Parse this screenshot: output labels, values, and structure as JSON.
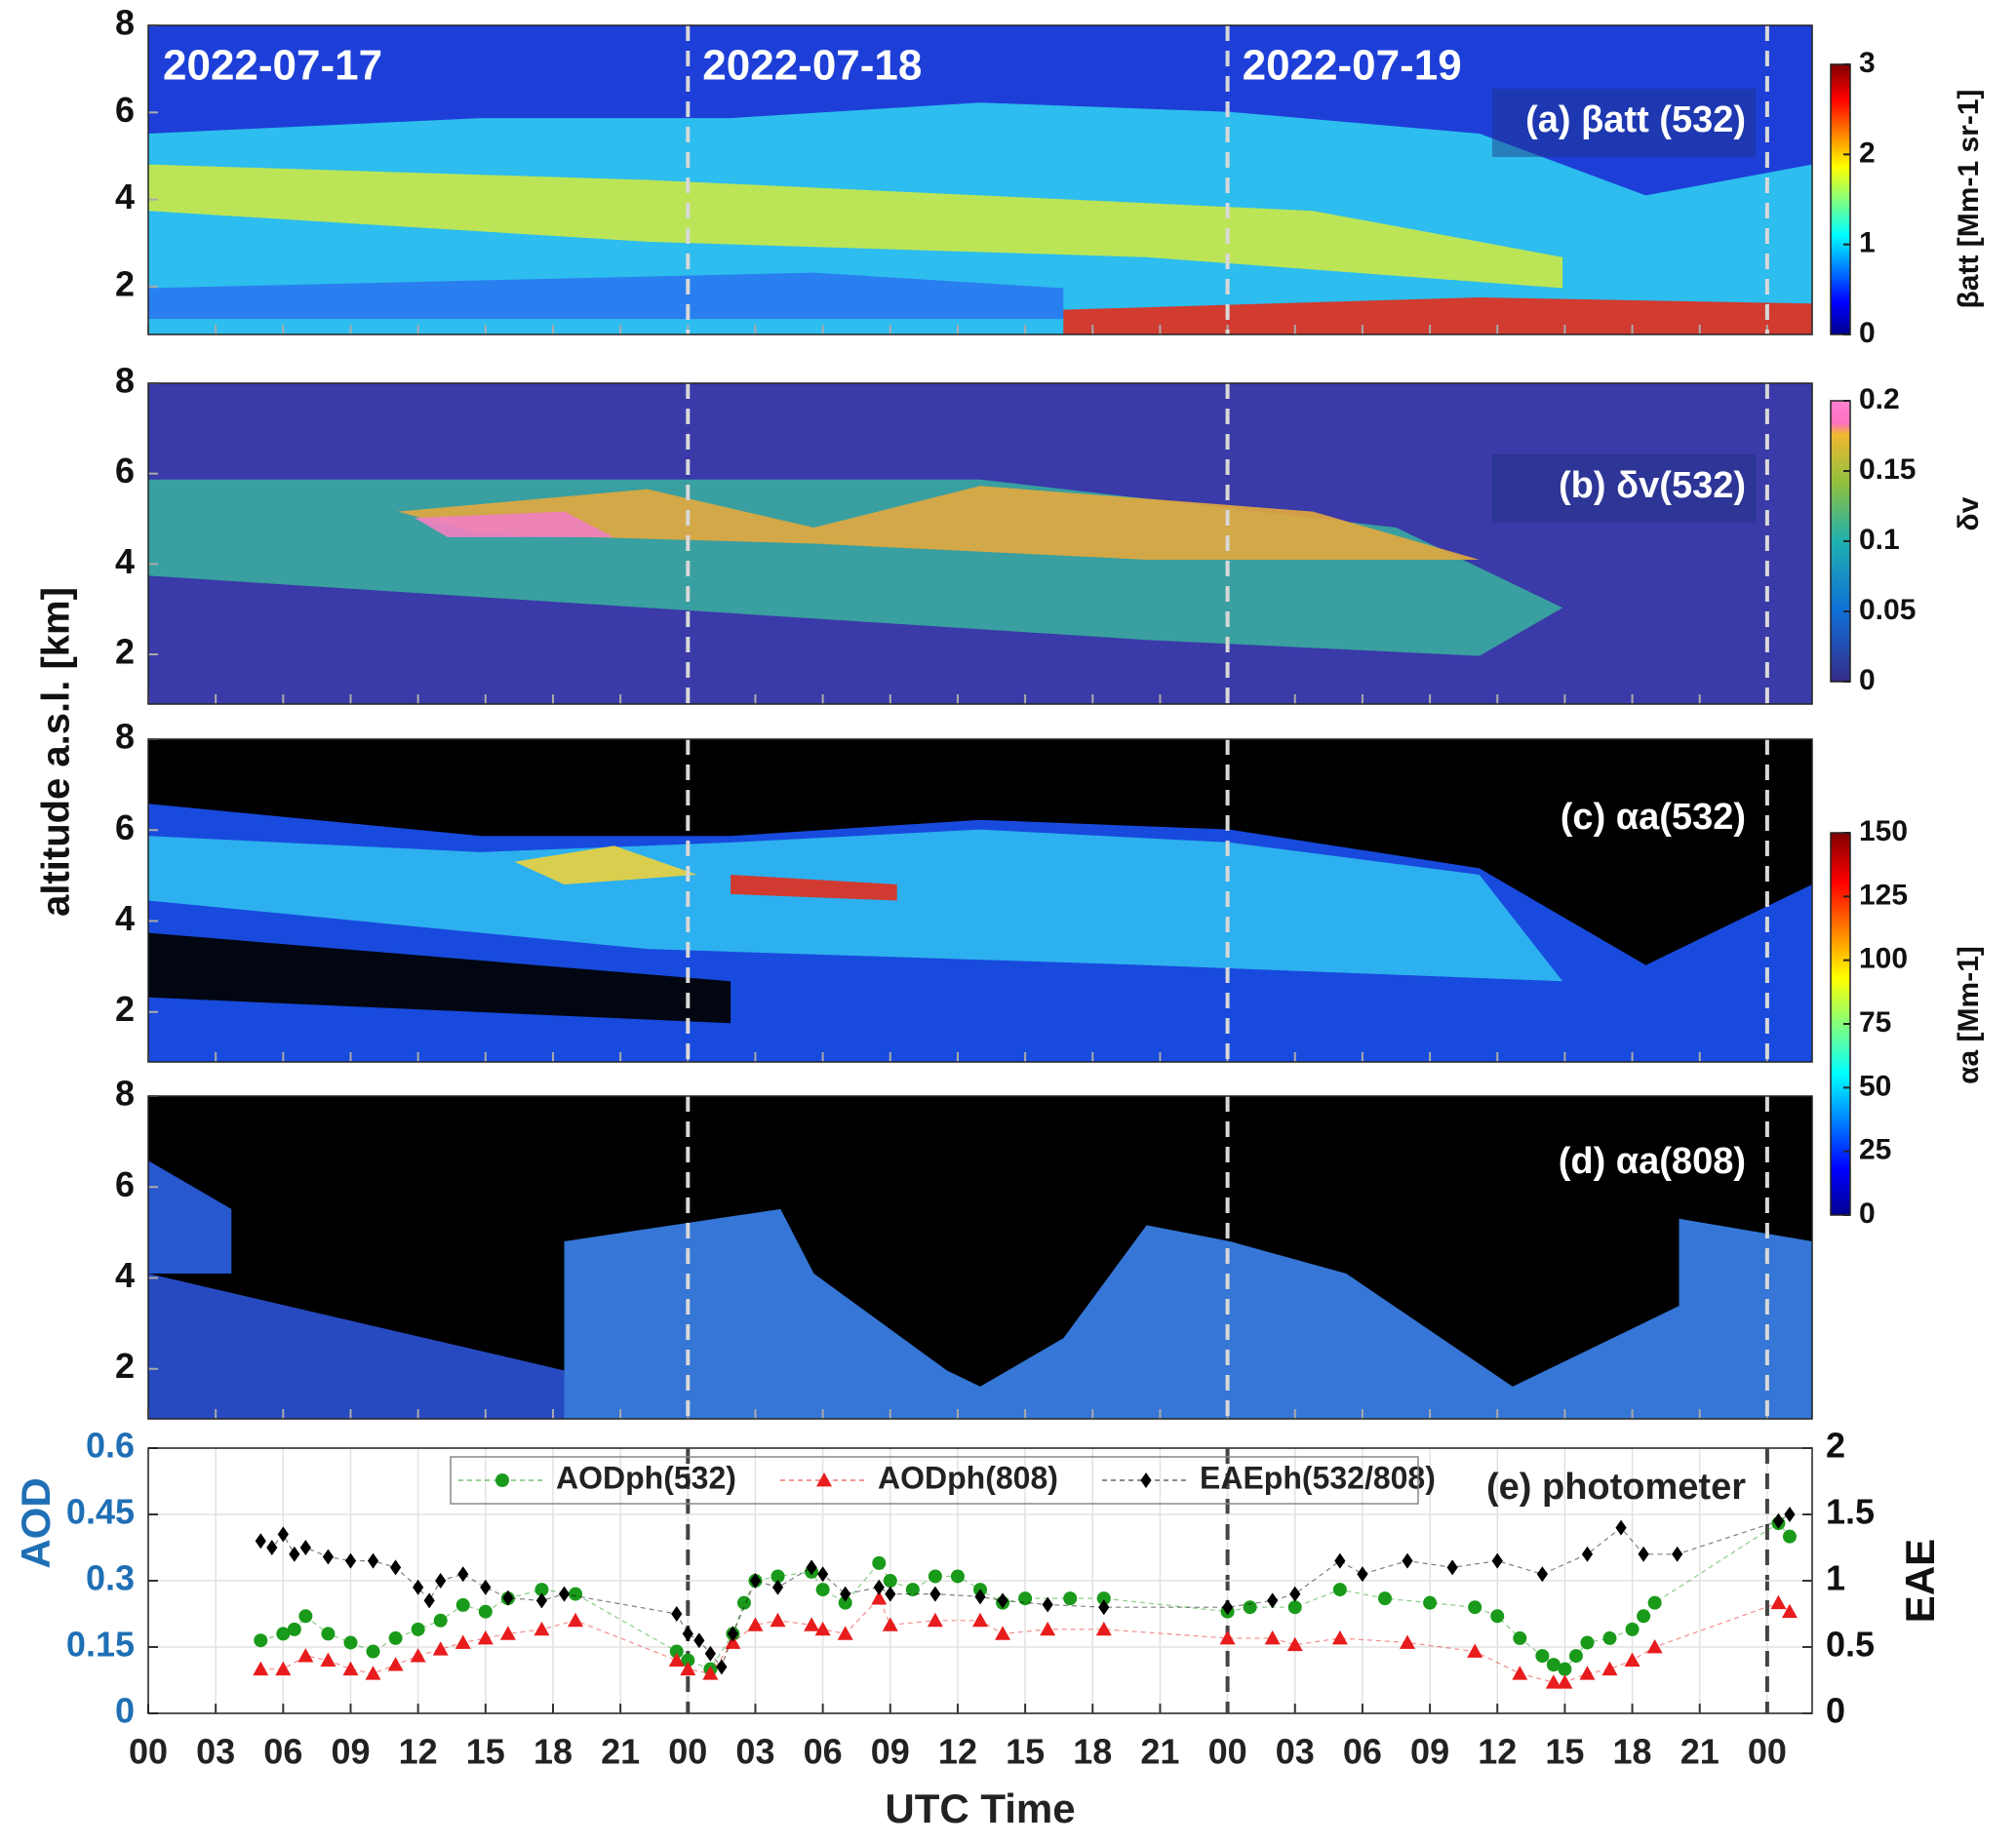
{
  "chart_data": [
    {
      "type": "heatmap",
      "panel_label": "(a) βatt (532)",
      "ylabel": "altitude a.s.l. [km]",
      "annotations": [
        "2022-07-17",
        "2022-07-18",
        "2022-07-19"
      ],
      "xlim": [
        0,
        74
      ],
      "xticks": [
        0,
        3,
        6,
        9,
        12,
        15,
        18,
        21,
        24,
        27,
        30,
        33,
        36,
        39,
        42,
        45,
        48,
        51,
        54,
        57,
        60,
        63,
        66,
        69,
        72
      ],
      "ylim": [
        0.9,
        8
      ],
      "yticks": [
        2,
        4,
        6,
        8
      ],
      "colorbar": {
        "label": "βatt [Mm-1 sr-1]",
        "lim": [
          0,
          3
        ],
        "ticks": [
          0,
          1,
          2,
          3
        ],
        "colormap": "jet"
      }
    },
    {
      "type": "heatmap",
      "panel_label": "(b) δv(532)",
      "xlim": [
        0,
        74
      ],
      "xticks": [
        0,
        3,
        6,
        9,
        12,
        15,
        18,
        21,
        24,
        27,
        30,
        33,
        36,
        39,
        42,
        45,
        48,
        51,
        54,
        57,
        60,
        63,
        66,
        69,
        72
      ],
      "ylim": [
        0.9,
        8
      ],
      "yticks": [
        2,
        4,
        6,
        8
      ],
      "colorbar": {
        "label": "δv",
        "lim": [
          0,
          0.2
        ],
        "ticks": [
          0,
          0.05,
          0.1,
          0.15,
          0.2
        ],
        "colormap": "parula"
      }
    },
    {
      "type": "heatmap",
      "panel_label": "(c) αa(532)",
      "xlim": [
        0,
        74
      ],
      "xticks": [
        0,
        3,
        6,
        9,
        12,
        15,
        18,
        21,
        24,
        27,
        30,
        33,
        36,
        39,
        42,
        45,
        48,
        51,
        54,
        57,
        60,
        63,
        66,
        69,
        72
      ],
      "ylim": [
        0.9,
        8
      ],
      "yticks": [
        2,
        4,
        6,
        8
      ],
      "colorbar": {
        "label": "αa [Mm-1]",
        "lim": [
          0,
          150
        ],
        "ticks": [
          0,
          25,
          50,
          75,
          100,
          125,
          150
        ],
        "colormap": "jet"
      }
    },
    {
      "type": "heatmap",
      "panel_label": "(d) αa(808)",
      "xlim": [
        0,
        74
      ],
      "xticks": [
        0,
        3,
        6,
        9,
        12,
        15,
        18,
        21,
        24,
        27,
        30,
        33,
        36,
        39,
        42,
        45,
        48,
        51,
        54,
        57,
        60,
        63,
        66,
        69,
        72
      ],
      "ylim": [
        0.9,
        8
      ],
      "yticks": [
        2,
        4,
        6,
        8
      ]
    },
    {
      "type": "scatter",
      "panel_label": "(e) photometer",
      "xlabel": "UTC Time",
      "ylabel": "AOD",
      "y2label": "EAE",
      "grid": true,
      "xlim": [
        0,
        74
      ],
      "xticks": [
        {
          "value": 0,
          "label": "00"
        },
        {
          "value": 3,
          "label": "03"
        },
        {
          "value": 6,
          "label": "06"
        },
        {
          "value": 9,
          "label": "09"
        },
        {
          "value": 12,
          "label": "12"
        },
        {
          "value": 15,
          "label": "15"
        },
        {
          "value": 18,
          "label": "18"
        },
        {
          "value": 21,
          "label": "21"
        },
        {
          "value": 24,
          "label": "00"
        },
        {
          "value": 27,
          "label": "03"
        },
        {
          "value": 30,
          "label": "06"
        },
        {
          "value": 33,
          "label": "09"
        },
        {
          "value": 36,
          "label": "12"
        },
        {
          "value": 39,
          "label": "15"
        },
        {
          "value": 42,
          "label": "18"
        },
        {
          "value": 45,
          "label": "21"
        },
        {
          "value": 48,
          "label": "00"
        },
        {
          "value": 51,
          "label": "03"
        },
        {
          "value": 54,
          "label": "06"
        },
        {
          "value": 57,
          "label": "09"
        },
        {
          "value": 60,
          "label": "12"
        },
        {
          "value": 63,
          "label": "15"
        },
        {
          "value": 66,
          "label": "18"
        },
        {
          "value": 69,
          "label": "21"
        },
        {
          "value": 72,
          "label": "00"
        }
      ],
      "ylim": [
        0,
        0.6
      ],
      "yticks": [
        0,
        0.15,
        0.3,
        0.45,
        0.6
      ],
      "y2lim": [
        0,
        2
      ],
      "y2ticks": [
        0,
        0.5,
        1,
        1.5,
        2
      ],
      "series": [
        {
          "name": "AODph(532)",
          "color": "#1a9a1a",
          "marker": "circle",
          "x": [
            5,
            6,
            6.5,
            7,
            8,
            9,
            10,
            11,
            12,
            13,
            14,
            15,
            16,
            17.5,
            19,
            23.5,
            24,
            25,
            26,
            26.5,
            27,
            28,
            29.5,
            30,
            31,
            32.5,
            33,
            34,
            35,
            36,
            37,
            38,
            39,
            41,
            42.5,
            48,
            49,
            51,
            53,
            55,
            57,
            59,
            60,
            61,
            62,
            62.5,
            63,
            63.5,
            64,
            65,
            66,
            66.5,
            67,
            72.5,
            73
          ],
          "values": [
            0.165,
            0.18,
            0.19,
            0.22,
            0.18,
            0.16,
            0.14,
            0.17,
            0.19,
            0.21,
            0.245,
            0.23,
            0.26,
            0.28,
            0.27,
            0.14,
            0.12,
            0.1,
            0.18,
            0.25,
            0.3,
            0.31,
            0.32,
            0.28,
            0.25,
            0.34,
            0.3,
            0.28,
            0.31,
            0.31,
            0.28,
            0.25,
            0.26,
            0.26,
            0.26,
            0.23,
            0.24,
            0.24,
            0.28,
            0.26,
            0.25,
            0.24,
            0.22,
            0.17,
            0.13,
            0.11,
            0.1,
            0.13,
            0.16,
            0.17,
            0.19,
            0.22,
            0.25,
            0.43,
            0.4
          ]
        },
        {
          "name": "AODph(808)",
          "color": "#e81c1c",
          "marker": "triangle",
          "x": [
            5,
            6,
            7,
            8,
            9,
            10,
            11,
            12,
            13,
            14,
            15,
            16,
            17.5,
            19,
            23.5,
            24,
            25,
            26,
            27,
            28,
            29.5,
            30,
            31,
            32.5,
            33,
            35,
            37,
            38,
            40,
            42.5,
            48,
            50,
            51,
            53,
            56,
            59,
            61,
            62.5,
            63,
            64,
            65,
            66,
            67,
            72.5,
            73
          ],
          "values": [
            0.1,
            0.1,
            0.13,
            0.12,
            0.1,
            0.09,
            0.11,
            0.13,
            0.145,
            0.16,
            0.17,
            0.18,
            0.19,
            0.21,
            0.12,
            0.1,
            0.09,
            0.16,
            0.2,
            0.21,
            0.2,
            0.19,
            0.18,
            0.26,
            0.2,
            0.21,
            0.21,
            0.18,
            0.19,
            0.19,
            0.17,
            0.17,
            0.155,
            0.17,
            0.16,
            0.14,
            0.09,
            0.07,
            0.07,
            0.09,
            0.1,
            0.12,
            0.15,
            0.25,
            0.23
          ]
        },
        {
          "name": "EAEph(532/808)",
          "color": "#000000",
          "marker": "diamond",
          "axis": "y2",
          "x": [
            5,
            5.5,
            6,
            6.5,
            7,
            8,
            9,
            10,
            11,
            12,
            12.5,
            13,
            14,
            15,
            16,
            17.5,
            18.5,
            23.5,
            24,
            24.5,
            25,
            25.5,
            26,
            27,
            28,
            29.5,
            30,
            31,
            32.5,
            33,
            35,
            37,
            38,
            40,
            42.5,
            48,
            50,
            51,
            53,
            54,
            56,
            58,
            60,
            62,
            64,
            65.5,
            66.5,
            68,
            72.5,
            73
          ],
          "values": [
            1.3,
            1.25,
            1.35,
            1.2,
            1.25,
            1.18,
            1.15,
            1.15,
            1.1,
            0.95,
            0.85,
            1,
            1.05,
            0.95,
            0.87,
            0.85,
            0.9,
            0.75,
            0.6,
            0.55,
            0.45,
            0.35,
            0.6,
            1,
            0.95,
            1.1,
            1.05,
            0.9,
            0.95,
            0.9,
            0.9,
            0.88,
            0.85,
            0.82,
            0.8,
            0.8,
            0.85,
            0.9,
            1.15,
            1.05,
            1.15,
            1.1,
            1.15,
            1.05,
            1.2,
            1.4,
            1.2,
            1.2,
            1.45,
            1.5
          ]
        }
      ]
    }
  ]
}
